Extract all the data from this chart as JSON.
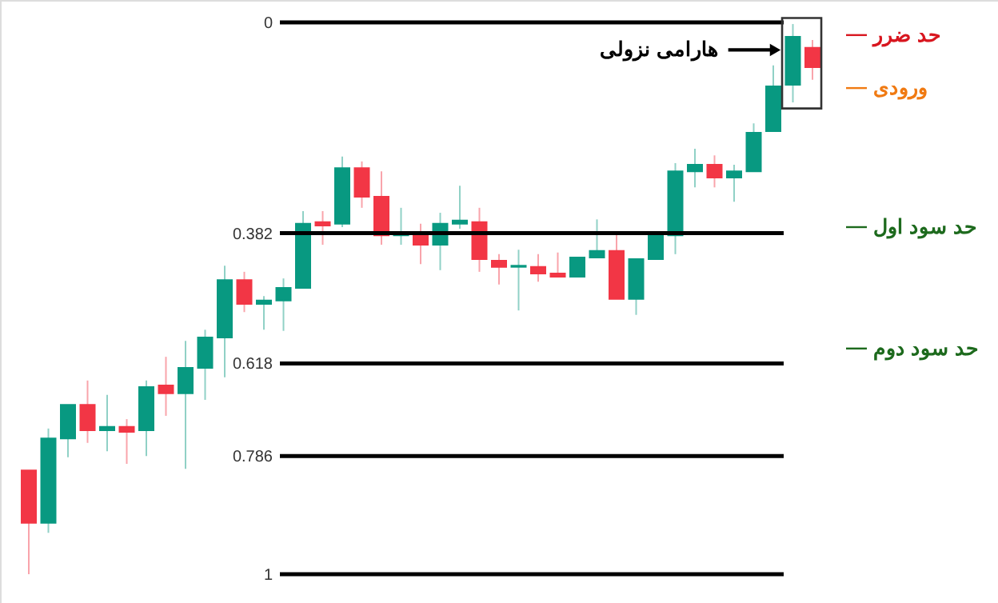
{
  "chart_data": {
    "type": "candlestick",
    "categories": [
      null,
      null,
      null,
      null,
      null,
      null,
      null,
      null,
      null,
      null,
      null,
      null,
      null,
      null,
      null,
      null,
      null,
      null,
      null,
      null,
      null,
      null,
      null,
      null,
      null,
      null,
      null,
      null,
      null,
      null,
      null,
      null,
      null,
      null,
      null,
      null,
      null,
      null,
      null,
      null,
      null
    ],
    "ohlc": [
      [
        0.812,
        1.0,
        0.812,
        0.907
      ],
      [
        0.907,
        0.925,
        0.736,
        0.754
      ],
      [
        0.754,
        0.788,
        0.693,
        0.693
      ],
      [
        0.693,
        0.762,
        0.649,
        0.739
      ],
      [
        0.739,
        0.777,
        0.675,
        0.733
      ],
      [
        0.733,
        0.8,
        0.719,
        0.742
      ],
      [
        0.739,
        0.786,
        0.649,
        0.661
      ],
      [
        0.658,
        0.713,
        0.606,
        0.672
      ],
      [
        0.672,
        0.809,
        0.577,
        0.626
      ],
      [
        0.626,
        0.684,
        0.557,
        0.571
      ],
      [
        0.571,
        0.643,
        0.441,
        0.467
      ],
      [
        0.467,
        0.525,
        0.452,
        0.51
      ],
      [
        0.51,
        0.557,
        0.496,
        0.504
      ],
      [
        0.504,
        0.559,
        0.464,
        0.481
      ],
      [
        0.481,
        0.481,
        0.342,
        0.365
      ],
      [
        0.362,
        0.403,
        0.342,
        0.368
      ],
      [
        0.365,
        0.371,
        0.243,
        0.264
      ],
      [
        0.264,
        0.336,
        0.252,
        0.316
      ],
      [
        0.316,
        0.403,
        0.27,
        0.386
      ],
      [
        0.386,
        0.403,
        0.336,
        0.38
      ],
      [
        0.38,
        0.438,
        0.365,
        0.403
      ],
      [
        0.403,
        0.449,
        0.345,
        0.365
      ],
      [
        0.365,
        0.374,
        0.296,
        0.359
      ],
      [
        0.362,
        0.452,
        0.336,
        0.429
      ],
      [
        0.432,
        0.475,
        0.42,
        0.443
      ],
      [
        0.443,
        0.522,
        0.412,
        0.441
      ],
      [
        0.443,
        0.47,
        0.42,
        0.455
      ],
      [
        0.455,
        0.461,
        0.417,
        0.461
      ],
      [
        0.461,
        0.461,
        0.426,
        0.426
      ],
      [
        0.426,
        0.426,
        0.357,
        0.414
      ],
      [
        0.414,
        0.501,
        0.38,
        0.501
      ],
      [
        0.501,
        0.53,
        0.429,
        0.429
      ],
      [
        0.429,
        0.429,
        0.386,
        0.386
      ],
      [
        0.386,
        0.42,
        0.255,
        0.27
      ],
      [
        0.27,
        0.299,
        0.229,
        0.258
      ],
      [
        0.258,
        0.299,
        0.241,
        0.281
      ],
      [
        0.281,
        0.325,
        0.258,
        0.27
      ],
      [
        0.27,
        0.27,
        0.183,
        0.2
      ],
      [
        0.197,
        0.197,
        0.078,
        0.116
      ],
      [
        0.113,
        0.145,
        0.003,
        0.026
      ],
      [
        0.046,
        0.104,
        0.032,
        0.081
      ]
    ],
    "colors": [
      "#f23645",
      "#089981",
      "#089981",
      "#f23645",
      "#089981",
      "#f23645",
      "#089981",
      "#f23645",
      "#089981",
      "#089981",
      "#089981",
      "#f23645",
      "#089981",
      "#089981",
      "#089981",
      "#f23645",
      "#089981",
      "#f23645",
      "#f23645",
      "#089981",
      "#f23645",
      "#089981",
      "#089981",
      "#f23645",
      "#f23645",
      "#089981",
      "#f23645",
      "#f23645",
      "#089981",
      "#089981",
      "#f23645",
      "#089981",
      "#089981",
      "#089981",
      "#089981",
      "#f23645",
      "#089981",
      "#089981",
      "#089981",
      "#089981",
      "#f23645"
    ],
    "ylim": [
      1,
      0
    ],
    "yticks": [
      0,
      0.382,
      0.618,
      0.786,
      1
    ],
    "ref_lines": [
      {
        "axis": "y",
        "value": 0,
        "color": "#000000"
      },
      {
        "axis": "y",
        "value": 0.382,
        "color": "#000000"
      },
      {
        "axis": "y",
        "value": 0.618,
        "color": "#000000"
      },
      {
        "axis": "y",
        "value": 0.786,
        "color": "#000000"
      },
      {
        "axis": "y",
        "value": 1,
        "color": "#000000"
      },
      {
        "axis": "y",
        "value": 0.023,
        "label": "حد ضرر",
        "color": "#d8161f"
      },
      {
        "axis": "y",
        "value": 0.119,
        "label": "ورودی",
        "color": "#f07a12"
      },
      {
        "axis": "y",
        "value": 0.371,
        "label": "حد سود اول",
        "color": "#1d6a1d"
      },
      {
        "axis": "y",
        "value": 0.591,
        "label": "حد سود دوم",
        "color": "#1d6a1d"
      }
    ],
    "annotations": [
      "هارامی نزولی"
    ]
  }
}
